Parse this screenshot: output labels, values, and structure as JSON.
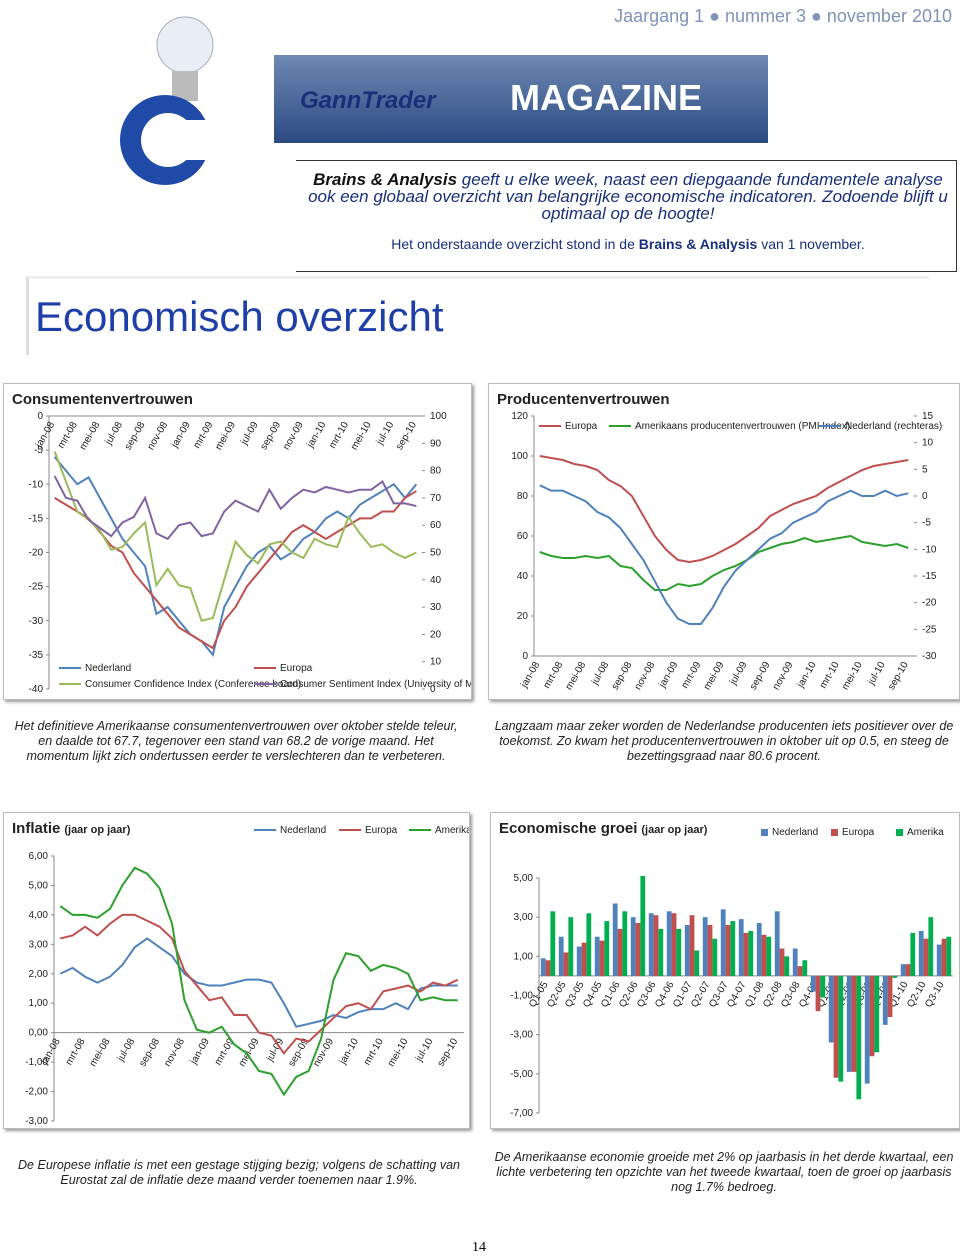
{
  "header": {
    "issue": "Jaargang 1 ● nummer 3 ● november 2010",
    "logo": "GannTrader",
    "magazine": "MAGAZINE"
  },
  "intro": {
    "lead_bold": "Brains & Analysis",
    "lead_text": "geeft u elke week, naast een diepgaande fundamentele analyse ook een globaal overzicht van belangrijke economische indicatoren. Zodoende blijft u optimaal op de hoogte!",
    "note_start": "Het onderstaande overzicht stond in de",
    "note_bold": "Brains & Analysis",
    "note_end": "van 1 november."
  },
  "section_title": "Economisch overzicht",
  "chart_data": [
    {
      "type": "line",
      "title": "Consumentenvertrouwen",
      "categories": [
        "jan-08",
        null,
        "mrt-08",
        null,
        "mei-08",
        null,
        "jul-08",
        null,
        "sep-08",
        null,
        "nov-08",
        null,
        "jan-09",
        null,
        "mrt-09",
        null,
        "mei-09",
        null,
        "jul-09",
        null,
        "sep-09",
        null,
        "nov-09",
        null,
        "jan-10",
        null,
        "mrt-10",
        null,
        "mei-10",
        null,
        "jul-10",
        null,
        "sep-10"
      ],
      "series": [
        {
          "name": "Nederland",
          "color": "#4f81bd",
          "values": [
            -6,
            -8,
            -10,
            -9,
            -12,
            -15,
            -18,
            -20,
            -22,
            -29,
            -28,
            -30,
            -32,
            -33,
            -35,
            -28,
            -25,
            -22,
            -20,
            -19,
            -21,
            -20,
            -18,
            -17,
            -15,
            -14,
            -15,
            -13,
            -12,
            -11,
            -10,
            -12,
            -10
          ]
        },
        {
          "name": "Europa",
          "color": "#c0504d",
          "values": [
            -12,
            -13,
            -14,
            -15,
            -17,
            -19,
            -20,
            -23,
            -25,
            -27,
            -29,
            -31,
            -32,
            -33,
            -34,
            -30,
            -28,
            -25,
            -23,
            -21,
            -19,
            -17,
            -16,
            -17,
            -18,
            -17,
            -16,
            -15,
            -15,
            -14,
            -14,
            -12,
            -11
          ]
        },
        {
          "name": "Consumer Confidence Index (Conference board)",
          "color": "#9bbb59",
          "axis": "y2",
          "values": [
            87,
            76,
            65,
            62,
            58,
            51,
            52,
            57,
            61,
            38,
            44,
            38,
            37,
            25,
            26,
            40,
            54,
            49,
            46,
            53,
            54,
            50,
            48,
            55,
            53,
            52,
            63,
            57,
            52,
            53,
            50,
            48,
            50
          ]
        },
        {
          "name": "Consumer Sentiment Index (University of Michigan)",
          "color": "#8064a2",
          "axis": "y2",
          "values": [
            78,
            70,
            69,
            62,
            59,
            56,
            61,
            63,
            70,
            57,
            55,
            60,
            61,
            56,
            57,
            65,
            69,
            67,
            65,
            73,
            66,
            70,
            73,
            72,
            74,
            73,
            72,
            73,
            73,
            76,
            68,
            68,
            67
          ]
        }
      ],
      "ylim": [
        -40,
        0
      ],
      "yticks": [
        -40,
        -35,
        -30,
        -25,
        -20,
        -15,
        -10,
        -5,
        0
      ],
      "y2lim": [
        0,
        100
      ],
      "y2ticks": [
        0,
        10,
        20,
        30,
        40,
        50,
        60,
        70,
        80,
        90,
        100
      ],
      "legend": "bottom"
    },
    {
      "type": "line",
      "title": "Producentenvertrouwen",
      "categories": [
        "jan-08",
        null,
        "mrt-08",
        null,
        "mei-08",
        null,
        "jul-08",
        null,
        "sep-08",
        null,
        "nov-08",
        null,
        "jan-09",
        null,
        "mrt-09",
        null,
        "mei-09",
        null,
        "jul-09",
        null,
        "sep-09",
        null,
        "nov-09",
        null,
        "jan-10",
        null,
        "mrt-10",
        null,
        "mei-10",
        null,
        "jul-10",
        null,
        "sep-10"
      ],
      "series": [
        {
          "name": "Europa",
          "color": "#c0504d",
          "values": [
            100,
            99,
            98,
            96,
            95,
            93,
            88,
            85,
            80,
            70,
            60,
            53,
            48,
            47,
            48,
            50,
            53,
            56,
            60,
            64,
            70,
            73,
            76,
            78,
            80,
            84,
            87,
            90,
            93,
            95,
            96,
            97,
            98
          ]
        },
        {
          "name": "Amerikaans producentenvertrouwen (PMI Index)",
          "color": "#2ca02c",
          "values": [
            52,
            50,
            49,
            49,
            50,
            49,
            50,
            45,
            44,
            38,
            33,
            33,
            36,
            35,
            36,
            40,
            43,
            45,
            48,
            52,
            54,
            56,
            57,
            59,
            57,
            58,
            59,
            60,
            57,
            56,
            55,
            56,
            54
          ]
        },
        {
          "name": "Nederland (rechteras)",
          "color": "#4f81bd",
          "axis": "y2",
          "values": [
            2,
            1,
            1,
            0,
            -1,
            -3,
            -4,
            -6,
            -9,
            -12,
            -16,
            -20,
            -23,
            -24,
            -24,
            -21,
            -17,
            -14,
            -12,
            -10,
            -8,
            -7,
            -5,
            -4,
            -3,
            -1,
            0,
            1,
            0,
            0,
            1,
            0,
            0.5
          ]
        }
      ],
      "ylim": [
        0,
        120
      ],
      "yticks": [
        0,
        20,
        40,
        60,
        80,
        100,
        120
      ],
      "y2lim": [
        -30,
        15
      ],
      "y2ticks": [
        -30,
        -25,
        -20,
        -15,
        -10,
        -5,
        0,
        5,
        10,
        15
      ],
      "legend": "top"
    },
    {
      "type": "line",
      "title": "Inflatie",
      "subtitle": "(jaar op jaar)",
      "categories": [
        "jan-08",
        null,
        "mrt-08",
        null,
        "mei-08",
        null,
        "jul-08",
        null,
        "sep-08",
        null,
        "nov-08",
        null,
        "jan-09",
        null,
        "mrt-09",
        null,
        "mei-09",
        null,
        "jul-09",
        null,
        "sep-09",
        null,
        "nov-09",
        null,
        "jan-10",
        null,
        "mrt-10",
        null,
        "mei-10",
        null,
        "jul-10",
        null,
        "sep-10"
      ],
      "series": [
        {
          "name": "Nederland",
          "color": "#4f81bd",
          "values": [
            2.0,
            2.2,
            1.9,
            1.7,
            1.9,
            2.3,
            2.9,
            3.2,
            2.9,
            2.6,
            2.0,
            1.7,
            1.6,
            1.6,
            1.7,
            1.8,
            1.8,
            1.7,
            1.0,
            0.2,
            0.3,
            0.4,
            0.6,
            0.5,
            0.7,
            0.8,
            0.8,
            1.0,
            0.8,
            1.5,
            1.6,
            1.6,
            1.6
          ]
        },
        {
          "name": "Europa",
          "color": "#c0504d",
          "values": [
            3.2,
            3.3,
            3.6,
            3.3,
            3.7,
            4.0,
            4.0,
            3.8,
            3.6,
            3.2,
            2.1,
            1.6,
            1.1,
            1.2,
            0.6,
            0.6,
            0.0,
            -0.1,
            -0.7,
            -0.2,
            -0.3,
            0.1,
            0.5,
            0.9,
            1.0,
            0.8,
            1.4,
            1.5,
            1.6,
            1.4,
            1.7,
            1.6,
            1.8
          ]
        },
        {
          "name": "Amerika",
          "color": "#2ca02c",
          "values": [
            4.3,
            4.0,
            4.0,
            3.9,
            4.2,
            5.0,
            5.6,
            5.4,
            4.9,
            3.7,
            1.1,
            0.1,
            0.0,
            0.2,
            -0.4,
            -0.7,
            -1.3,
            -1.4,
            -2.1,
            -1.5,
            -1.3,
            -0.2,
            1.8,
            2.7,
            2.6,
            2.1,
            2.3,
            2.2,
            2.0,
            1.1,
            1.2,
            1.1,
            1.1
          ]
        }
      ],
      "ylim": [
        -3,
        6
      ],
      "yticks": [
        {
          "value": -3,
          "label": "-3,00"
        },
        {
          "value": -2,
          "label": "-2,00"
        },
        {
          "value": -1,
          "label": "-1,00"
        },
        {
          "value": 0,
          "label": "0,00"
        },
        {
          "value": 1,
          "label": "1,00"
        },
        {
          "value": 2,
          "label": "2,00"
        },
        {
          "value": 3,
          "label": "3,00"
        },
        {
          "value": 4,
          "label": "4,00"
        },
        {
          "value": 5,
          "label": "5,00"
        },
        {
          "value": 6,
          "label": "6,00"
        }
      ],
      "legend": "top"
    },
    {
      "type": "bar",
      "title": "Economische groei",
      "subtitle": "(jaar op jaar)",
      "categories": [
        "Q1-05",
        "Q2-05",
        "Q3-05",
        "Q4-05",
        "Q1-06",
        "Q2-06",
        "Q3-06",
        "Q4-06",
        "Q1-07",
        "Q2-07",
        "Q3-07",
        "Q4-07",
        "Q1-08",
        "Q2-08",
        "Q3-08",
        "Q4-08",
        "Q1-09",
        "Q2-09",
        "Q3-09",
        "Q4-09",
        "Q1-10",
        "Q2-10",
        "Q3-10"
      ],
      "series": [
        {
          "name": "Nederland",
          "color": "#4f81bd",
          "values": [
            0.9,
            2.0,
            1.5,
            2.0,
            3.7,
            3.0,
            3.2,
            3.3,
            2.6,
            3.0,
            3.4,
            2.9,
            2.7,
            3.3,
            1.4,
            -0.8,
            -3.4,
            -4.9,
            -5.5,
            -2.5,
            0.6,
            2.3,
            1.6
          ]
        },
        {
          "name": "Europa",
          "color": "#c0504d",
          "values": [
            0.8,
            1.2,
            1.7,
            1.8,
            2.4,
            2.7,
            3.1,
            3.2,
            3.1,
            2.6,
            2.6,
            2.2,
            2.1,
            1.4,
            0.5,
            -1.8,
            -5.2,
            -4.9,
            -4.1,
            -2.1,
            0.6,
            1.9,
            1.9
          ]
        },
        {
          "name": "Amerika",
          "color": "#00b050",
          "values": [
            3.3,
            3.0,
            3.2,
            2.8,
            3.3,
            5.1,
            2.4,
            2.4,
            1.3,
            1.9,
            2.8,
            2.3,
            2.0,
            1.0,
            0.8,
            -1.1,
            -5.4,
            -6.3,
            -3.9,
            -0.1,
            2.2,
            3.0,
            2.0
          ]
        }
      ],
      "ylim": [
        -7,
        5
      ],
      "yticks": [
        {
          "value": -7,
          "label": "-7,00"
        },
        {
          "value": -5,
          "label": "-5,00"
        },
        {
          "value": -3,
          "label": "-3,00"
        },
        {
          "value": -1,
          "label": "-1,00"
        },
        {
          "value": 1,
          "label": "1,00"
        },
        {
          "value": 3,
          "label": "3,00"
        },
        {
          "value": 5,
          "label": "5,00"
        }
      ],
      "legend": "top"
    }
  ],
  "captions": [
    "Het definitieve Amerikaanse consumentenvertrouwen over oktober stelde teleur, en daalde tot 67.7, tegenover een stand van 68.2 de vorige maand. Het momentum lijkt zich ondertussen eerder te verslechteren dan te verbeteren.",
    "Langzaam maar zeker worden de Nederlandse producenten iets positiever over de toekomst. Zo kwam het producentenvertrouwen in oktober uit op 0.5, en steeg de bezettingsgraad naar 80.6 procent.",
    "De Europese inflatie is met een gestage stijging bezig; volgens de schatting van Eurostat zal de inflatie deze maand verder toenemen naar 1.9%.",
    "De Amerikaanse economie groeide met 2% op jaarbasis in het derde kwartaal, een lichte verbetering ten opzichte van het tweede kwartaal, toen de groei op jaarbasis nog 1.7% bedroeg."
  ],
  "page_number": "14"
}
